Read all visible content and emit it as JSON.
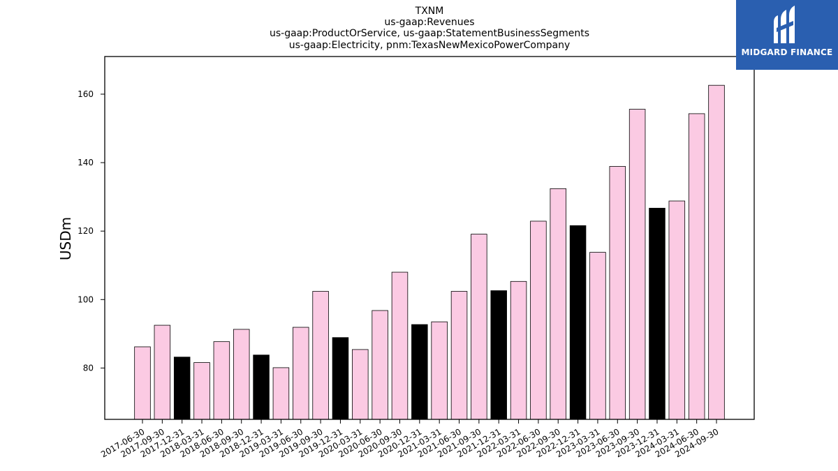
{
  "titles": [
    "TXNM",
    "us-gaap:Revenues",
    "us-gaap:ProductOrService, us-gaap:StatementBusinessSegments",
    "us-gaap:Electricity, pnm:TexasNewMexicoPowerCompany"
  ],
  "logo": {
    "text": "MIDGARD FINANCE",
    "bg_color": "#2a5fb0"
  },
  "chart_data": {
    "type": "bar",
    "ylabel": "USDm",
    "xlabel": "",
    "ylim": [
      65,
      171
    ],
    "yticks": [
      80,
      100,
      120,
      140,
      160
    ],
    "colors": {
      "quarter": "#fbcae3",
      "annual": "#000000",
      "edge": "#000000"
    },
    "categories": [
      "2017-06-30",
      "2017-09-30",
      "2017-12-31",
      "2018-03-31",
      "2018-06-30",
      "2018-09-30",
      "2018-12-31",
      "2019-03-31",
      "2019-06-30",
      "2019-09-30",
      "2019-12-31",
      "2020-03-31",
      "2020-06-30",
      "2020-09-30",
      "2020-12-31",
      "2021-03-31",
      "2021-06-30",
      "2021-09-30",
      "2021-12-31",
      "2022-03-31",
      "2022-06-30",
      "2022-09-30",
      "2022-12-31",
      "2023-03-31",
      "2023-06-30",
      "2023-09-30",
      "2023-12-31",
      "2024-03-31",
      "2024-06-30",
      "2024-09-30"
    ],
    "values": [
      86.2,
      92.5,
      83.2,
      81.6,
      87.7,
      91.3,
      83.8,
      80.1,
      91.9,
      102.4,
      88.9,
      85.4,
      96.8,
      108.0,
      92.7,
      93.5,
      102.4,
      119.1,
      102.6,
      105.3,
      122.9,
      132.4,
      121.6,
      113.8,
      138.9,
      155.6,
      126.7,
      128.8,
      154.3,
      162.6
    ],
    "highlight": [
      false,
      false,
      true,
      false,
      false,
      false,
      true,
      false,
      false,
      false,
      true,
      false,
      false,
      false,
      true,
      false,
      false,
      false,
      true,
      false,
      false,
      false,
      true,
      false,
      false,
      false,
      true,
      false,
      false,
      false
    ]
  }
}
